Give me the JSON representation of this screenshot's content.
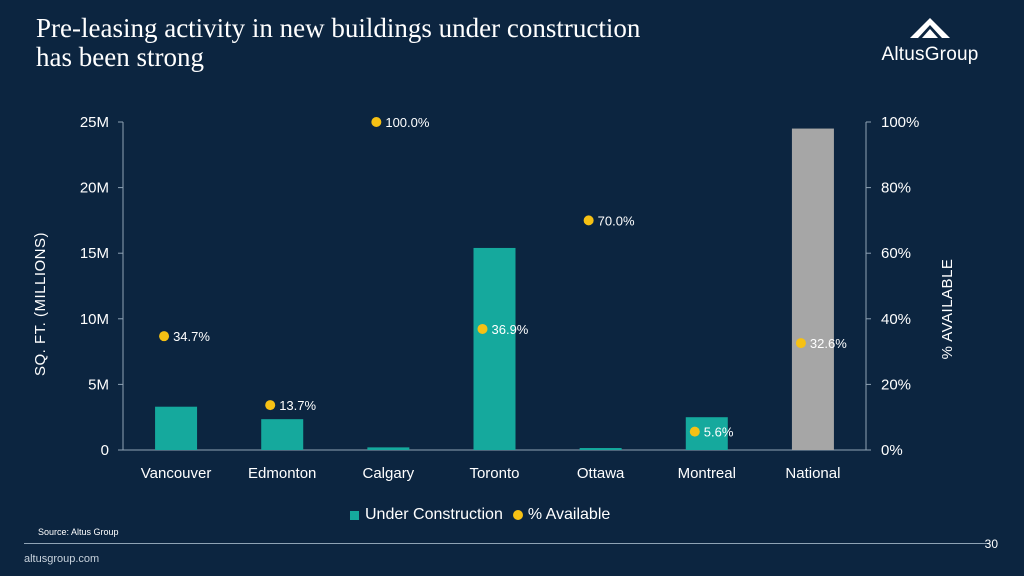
{
  "header": {
    "title_line1": "Pre-leasing activity in new buildings under construction",
    "title_line2": "has been strong",
    "logo_text": "AltusGroup"
  },
  "chart_data": {
    "type": "bar",
    "categories": [
      "Vancouver",
      "Edmonton",
      "Calgary",
      "Toronto",
      "Ottawa",
      "Montreal",
      "National"
    ],
    "series": [
      {
        "name": "Under Construction",
        "axis": "left",
        "values": [
          3.3,
          2.35,
          0.2,
          15.4,
          0.15,
          2.5,
          24.5
        ],
        "colors": [
          "#15a99d",
          "#15a99d",
          "#15a99d",
          "#15a99d",
          "#15a99d",
          "#15a99d",
          "#a6a6a6"
        ]
      },
      {
        "name": "% Available",
        "type": "scatter",
        "axis": "right",
        "values": [
          34.7,
          13.7,
          100.0,
          36.9,
          70.0,
          5.6,
          32.6
        ],
        "labels": [
          "34.7%",
          "13.7%",
          "100.0%",
          "36.9%",
          "70.0%",
          "5.6%",
          "32.6%"
        ],
        "color": "#f6c114"
      }
    ],
    "ylabel": "SQ. FT. (MILLIONS)",
    "y2label": "% AVAILABLE",
    "ylim": [
      0,
      25
    ],
    "y2lim": [
      0,
      100
    ],
    "yticks": [
      0,
      5,
      10,
      15,
      20,
      25
    ],
    "ytick_labels": [
      "0",
      "5M",
      "10M",
      "15M",
      "20M",
      "25M"
    ],
    "y2ticks": [
      0,
      20,
      40,
      60,
      80,
      100
    ],
    "y2tick_labels": [
      "0%",
      "20%",
      "40%",
      "60%",
      "80%",
      "100%"
    ],
    "grid": false,
    "legend": "bottom"
  },
  "footer": {
    "source": "Source:  Altus Group",
    "page_number": "30",
    "website": "altusgroup.com"
  }
}
